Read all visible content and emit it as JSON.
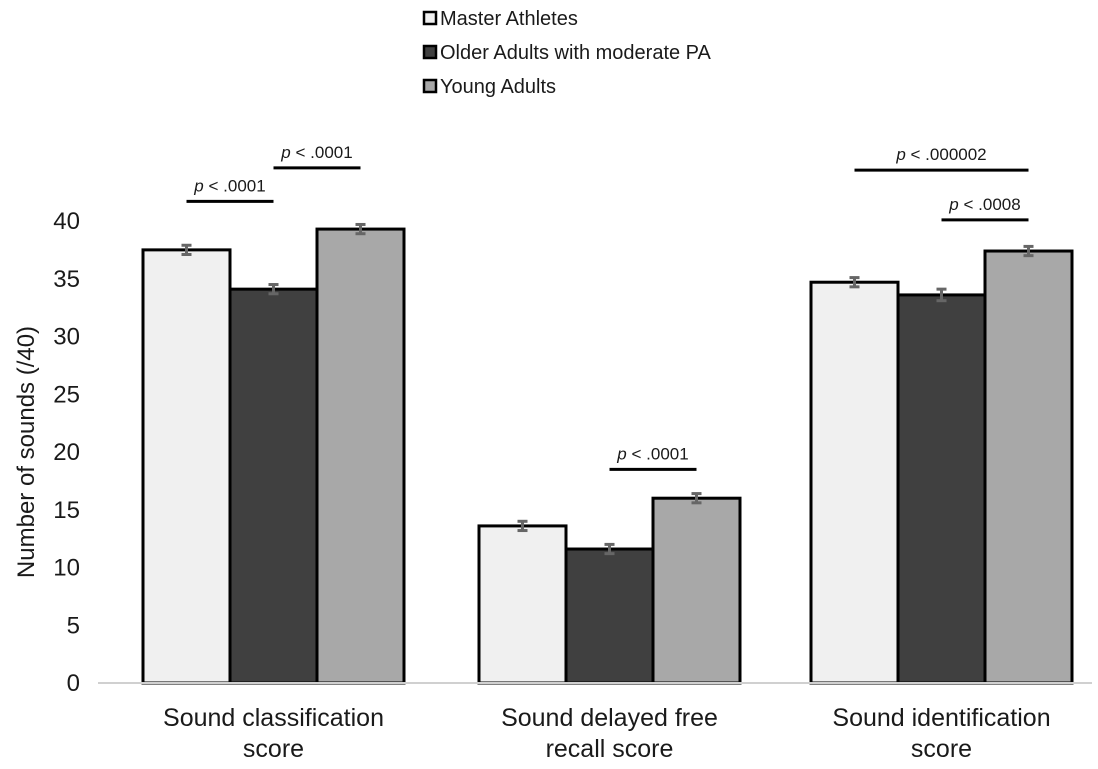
{
  "chart_data": {
    "type": "bar",
    "title": "",
    "xlabel": "",
    "ylabel": "Number of sounds (/40)",
    "ylim": [
      0,
      40
    ],
    "yticks": [
      0,
      5,
      10,
      15,
      20,
      25,
      30,
      35,
      40
    ],
    "grid": false,
    "legend_position": "top-left",
    "categories": [
      [
        "Sound classification",
        "score"
      ],
      [
        "Sound delayed free",
        "recall score"
      ],
      [
        "Sound identification",
        "score"
      ]
    ],
    "series": [
      {
        "name": "Master Athletes",
        "color": "#f0f0f0",
        "values": [
          37.5,
          13.6,
          34.7
        ],
        "errors": [
          0.4,
          0.4,
          0.4
        ]
      },
      {
        "name": "Older Adults with moderate PA",
        "color": "#404040",
        "values": [
          34.1,
          11.6,
          33.6
        ],
        "errors": [
          0.4,
          0.4,
          0.5
        ]
      },
      {
        "name": "Young Adults",
        "color": "#a8a8a8",
        "values": [
          39.3,
          16.0,
          37.4
        ],
        "errors": [
          0.4,
          0.4,
          0.4
        ]
      }
    ],
    "annotations": [
      {
        "prefix": "p",
        "text": " < .0001",
        "category": 0,
        "from": 0,
        "to": 1,
        "y": 41.7
      },
      {
        "prefix": "p",
        "text": " < .0001",
        "category": 0,
        "from": 1,
        "to": 2,
        "y": 44.6
      },
      {
        "prefix": "p",
        "text": " < .0001",
        "category": 1,
        "from": 1,
        "to": 2,
        "y": 18.5
      },
      {
        "prefix": "p",
        "text": " < .000002",
        "category": 2,
        "from": 0,
        "to": 2,
        "y": 44.4
      },
      {
        "prefix": "p",
        "text": " < .0008",
        "category": 2,
        "from": 1,
        "to": 2,
        "y": 40.1
      }
    ]
  }
}
